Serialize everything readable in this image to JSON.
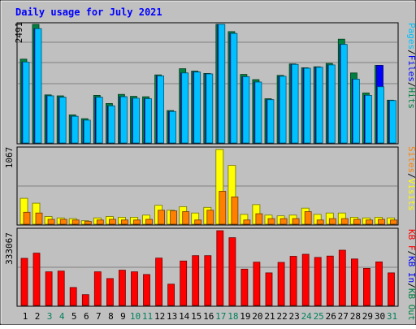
{
  "chart_data": [
    {
      "type": "bar",
      "title": "Daily usage for July 2021",
      "panel": "top",
      "ymax_label": "2491",
      "ylim": [
        0,
        2491
      ],
      "categories": [
        "1",
        "2",
        "3",
        "4",
        "5",
        "6",
        "7",
        "8",
        "9",
        "10",
        "11",
        "12",
        "13",
        "14",
        "15",
        "16",
        "17",
        "18",
        "19",
        "20",
        "21",
        "22",
        "23",
        "24",
        "25",
        "26",
        "27",
        "28",
        "29",
        "30",
        "31"
      ],
      "weekend_days": [
        "3",
        "4",
        "10",
        "11",
        "17",
        "18",
        "24",
        "25",
        "31"
      ],
      "legend": [
        "Pages",
        "Files",
        "Hits"
      ],
      "series": [
        {
          "name": "Hits",
          "color": "#008040",
          "values": [
            1760,
            2491,
            1010,
            990,
            590,
            510,
            1000,
            830,
            1020,
            980,
            970,
            1430,
            680,
            1560,
            1510,
            1460,
            2491,
            2340,
            1440,
            1330,
            930,
            1420,
            1660,
            1580,
            1600,
            1670,
            2180,
            1470,
            1050,
            1630,
            900
          ]
        },
        {
          "name": "Files",
          "color": "#0000ff",
          "values": [
            1700,
            2400,
            990,
            960,
            560,
            480,
            960,
            780,
            970,
            940,
            930,
            1410,
            660,
            1470,
            1490,
            1450,
            2491,
            2300,
            1390,
            1280,
            910,
            1400,
            1650,
            1570,
            1590,
            1640,
            2070,
            1340,
            1000,
            1630,
            890
          ]
        },
        {
          "name": "Pages",
          "color": "#00c0ff",
          "values": [
            1700,
            2400,
            990,
            960,
            560,
            480,
            960,
            780,
            970,
            940,
            930,
            1410,
            660,
            1470,
            1490,
            1450,
            2491,
            2300,
            1390,
            1280,
            910,
            1400,
            1650,
            1570,
            1590,
            1640,
            2070,
            1340,
            1000,
            1180,
            890
          ]
        }
      ]
    },
    {
      "type": "bar",
      "panel": "middle",
      "ymax_label": "1067",
      "ylim": [
        0,
        1067
      ],
      "legend": [
        "Sites",
        "Visits"
      ],
      "series": [
        {
          "name": "Visits",
          "color": "#ffff00",
          "values": [
            370,
            300,
            110,
            90,
            80,
            50,
            90,
            110,
            100,
            100,
            130,
            270,
            200,
            250,
            160,
            240,
            1067,
            840,
            140,
            280,
            130,
            120,
            130,
            230,
            140,
            160,
            160,
            100,
            90,
            100,
            90
          ]
        },
        {
          "name": "Sites",
          "color": "#ff8000",
          "values": [
            170,
            160,
            70,
            70,
            60,
            40,
            60,
            70,
            60,
            60,
            70,
            200,
            190,
            180,
            60,
            200,
            470,
            390,
            60,
            150,
            80,
            80,
            80,
            180,
            60,
            80,
            80,
            70,
            60,
            70,
            60
          ]
        }
      ]
    },
    {
      "type": "bar",
      "panel": "bottom",
      "ymax_label": "333067",
      "ylim": [
        0,
        333067
      ],
      "legend": [
        "KB F",
        "KB In",
        "KB Out"
      ],
      "series": [
        {
          "name": "KB F",
          "color": "#ff0000",
          "values": [
            210000,
            233000,
            150000,
            153000,
            80000,
            48000,
            150000,
            120000,
            157000,
            150000,
            138000,
            211000,
            95000,
            198000,
            222000,
            222000,
            333067,
            302000,
            162000,
            193000,
            145000,
            192000,
            219000,
            228000,
            214000,
            220000,
            246000,
            207000,
            165000,
            194000,
            145000
          ]
        }
      ]
    }
  ]
}
